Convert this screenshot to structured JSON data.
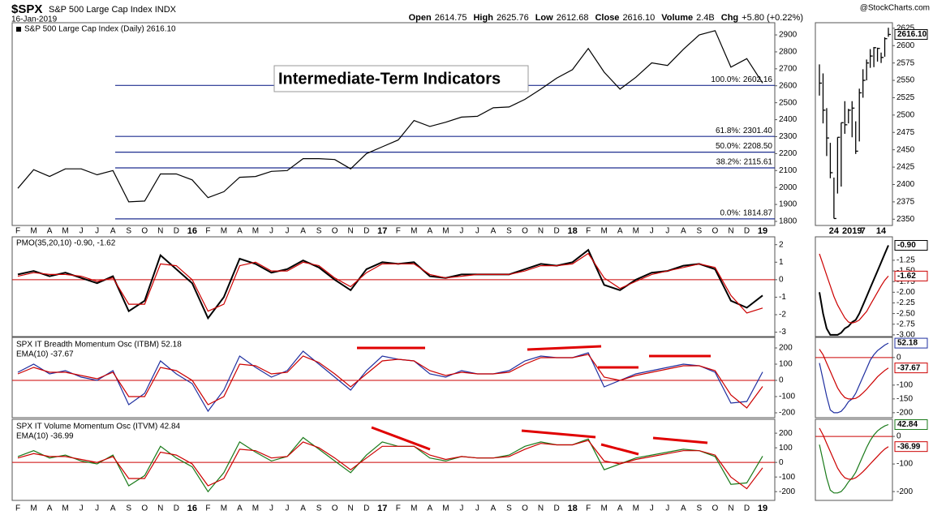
{
  "header": {
    "symbol": "$SPX",
    "name": "S&P 500 Large Cap Index",
    "exchange": "INDX",
    "date": "16-Jan-2019",
    "credit": "@StockCharts.com",
    "quote": [
      {
        "label": "Open",
        "text": "2614.75"
      },
      {
        "label": "High",
        "text": "2625.76"
      },
      {
        "label": "Low",
        "text": "2612.68"
      },
      {
        "label": "Close",
        "text": "2616.10"
      },
      {
        "label": "Volume",
        "text": "2.4B"
      },
      {
        "label": "Chg",
        "text": "+5.80 (+0.22%)"
      }
    ]
  },
  "chart_data": [
    {
      "type": "line",
      "title": "Intermediate-Term Indicators",
      "legend": "S&P 500 Large Cap Index (Daily) 2616.10",
      "categories": [
        "F",
        "M",
        "A",
        "M",
        "J",
        "J",
        "A",
        "S",
        "O",
        "N",
        "D",
        "16",
        "F",
        "M",
        "A",
        "M",
        "J",
        "J",
        "A",
        "S",
        "O",
        "N",
        "D",
        "17",
        "F",
        "M",
        "A",
        "M",
        "J",
        "J",
        "A",
        "S",
        "O",
        "N",
        "D",
        "18",
        "F",
        "M",
        "A",
        "M",
        "J",
        "J",
        "A",
        "S",
        "O",
        "N",
        "D",
        "19"
      ],
      "series": [
        {
          "color": "#000000",
          "values": [
            1995,
            2105,
            2065,
            2110,
            2110,
            2075,
            2100,
            1915,
            1920,
            2080,
            2080,
            2045,
            1940,
            1975,
            2060,
            2065,
            2095,
            2100,
            2170,
            2170,
            2165,
            2110,
            2200,
            2240,
            2280,
            2395,
            2360,
            2385,
            2415,
            2420,
            2470,
            2475,
            2520,
            2580,
            2645,
            2695,
            2820,
            2680,
            2580,
            2650,
            2735,
            2720,
            2815,
            2900,
            2925,
            2710,
            2760,
            2616.1
          ]
        }
      ],
      "ylim": [
        1776,
        2972
      ],
      "yticks": [
        1800,
        1900,
        2000,
        2100,
        2200,
        2300,
        2400,
        2500,
        2600,
        2700,
        2800,
        2900
      ],
      "fib_levels": [
        {
          "value": 2602.16,
          "label": "100.0%: 2602.16"
        },
        {
          "value": 2301.4,
          "label": "61.8%: 2301.40"
        },
        {
          "value": 2208.5,
          "label": "50.0%: 2208.50"
        },
        {
          "value": 2115.61,
          "label": "38.2%: 2115.61"
        },
        {
          "value": 1814.87,
          "label": "0.0%: 1814.87"
        }
      ]
    },
    {
      "type": "line",
      "ylim": [
        -3.25,
        2.45
      ],
      "yticks": [
        -3,
        -2,
        -1,
        0,
        1,
        2
      ],
      "reference_line": 0,
      "series": [
        {
          "name": "PMO(35,20,10) -0.90, -1.62",
          "color": "#000000",
          "values": [
            0.3,
            0.5,
            0.2,
            0.4,
            0.1,
            -0.2,
            0.2,
            -1.8,
            -1.2,
            1.4,
            0.6,
            -0.2,
            -2.2,
            -1.0,
            1.2,
            0.9,
            0.4,
            0.6,
            1.1,
            0.7,
            0.0,
            -0.6,
            0.6,
            1.0,
            0.9,
            1.0,
            0.2,
            0.1,
            0.3,
            0.3,
            0.3,
            0.3,
            0.6,
            0.9,
            0.8,
            1.0,
            1.7,
            -0.3,
            -0.6,
            0.0,
            0.4,
            0.5,
            0.8,
            0.9,
            0.6,
            -1.2,
            -1.6,
            -0.9
          ]
        },
        {
          "color": "#cc0000",
          "values": [
            0.2,
            0.4,
            0.3,
            0.3,
            0.2,
            -0.1,
            0.1,
            -1.4,
            -1.4,
            0.9,
            0.8,
            0.0,
            -1.8,
            -1.4,
            0.8,
            1.0,
            0.5,
            0.5,
            1.0,
            0.8,
            0.1,
            -0.4,
            0.4,
            0.9,
            0.9,
            0.9,
            0.3,
            0.1,
            0.2,
            0.3,
            0.3,
            0.3,
            0.5,
            0.8,
            0.8,
            0.9,
            1.5,
            0.1,
            -0.5,
            -0.1,
            0.3,
            0.5,
            0.7,
            0.9,
            0.7,
            -0.9,
            -1.9,
            -1.62
          ]
        }
      ]
    },
    {
      "type": "line",
      "ylim": [
        -230,
        265
      ],
      "yticks": [
        -200,
        -100,
        0,
        100,
        200
      ],
      "reference_line": 0,
      "series": [
        {
          "name": "SPX IT Breadth Momentum Osc (ITBM) 52.18",
          "color": "#1f2fa0",
          "values": [
            50,
            100,
            40,
            60,
            20,
            0,
            60,
            -150,
            -80,
            120,
            40,
            -20,
            -190,
            -60,
            150,
            80,
            20,
            60,
            180,
            100,
            20,
            -60,
            60,
            150,
            130,
            120,
            40,
            20,
            60,
            40,
            40,
            60,
            120,
            150,
            140,
            140,
            170,
            -40,
            0,
            40,
            60,
            80,
            100,
            90,
            50,
            -140,
            -130,
            52.18
          ]
        },
        {
          "name": "EMA(10) -37.67",
          "color": "#cc0000",
          "values": [
            40,
            80,
            50,
            50,
            30,
            10,
            50,
            -100,
            -100,
            80,
            60,
            0,
            -150,
            -100,
            100,
            90,
            40,
            50,
            150,
            110,
            40,
            -40,
            40,
            120,
            130,
            120,
            60,
            30,
            50,
            40,
            40,
            50,
            100,
            140,
            140,
            140,
            160,
            20,
            0,
            30,
            50,
            70,
            90,
            90,
            60,
            -90,
            -170,
            -37.67
          ]
        }
      ]
    },
    {
      "type": "line",
      "ylim": [
        -260,
        295
      ],
      "yticks": [
        -200,
        -100,
        0,
        100,
        200
      ],
      "reference_line": 0,
      "categories": [
        "F",
        "M",
        "A",
        "M",
        "J",
        "J",
        "A",
        "S",
        "O",
        "N",
        "D",
        "16",
        "F",
        "M",
        "A",
        "M",
        "J",
        "J",
        "A",
        "S",
        "O",
        "N",
        "D",
        "17",
        "F",
        "M",
        "A",
        "M",
        "J",
        "J",
        "A",
        "S",
        "O",
        "N",
        "D",
        "18",
        "F",
        "M",
        "A",
        "M",
        "J",
        "J",
        "A",
        "S",
        "O",
        "N",
        "D",
        "19"
      ],
      "series": [
        {
          "name": "SPX IT Volume Momentum Osc (ITVM) 42.84",
          "color": "#1a7a1a",
          "values": [
            40,
            80,
            30,
            50,
            10,
            -10,
            50,
            -160,
            -90,
            110,
            30,
            -30,
            -200,
            -70,
            140,
            70,
            10,
            40,
            170,
            90,
            10,
            -70,
            50,
            140,
            110,
            110,
            30,
            10,
            40,
            30,
            30,
            50,
            110,
            140,
            120,
            120,
            160,
            -50,
            -10,
            30,
            50,
            70,
            90,
            80,
            40,
            -150,
            -140,
            42.84
          ]
        },
        {
          "name": "EMA(10) -36.99",
          "color": "#cc0000",
          "values": [
            30,
            60,
            40,
            40,
            20,
            0,
            40,
            -110,
            -110,
            70,
            50,
            -10,
            -160,
            -110,
            90,
            80,
            30,
            40,
            140,
            100,
            30,
            -50,
            30,
            110,
            110,
            110,
            50,
            20,
            40,
            30,
            30,
            40,
            90,
            130,
            120,
            120,
            150,
            10,
            -10,
            20,
            40,
            60,
            80,
            80,
            50,
            -100,
            -180,
            -36.99
          ]
        }
      ]
    },
    {
      "type": "ohlc",
      "categories": [
        null,
        null,
        null,
        null,
        "24",
        null,
        null,
        null,
        null,
        "2019",
        null,
        null,
        "7",
        null,
        null,
        null,
        null,
        "14",
        null,
        null
      ],
      "high": [
        2573,
        2560,
        2510,
        2460,
        2410,
        2468,
        2489,
        2520,
        2509,
        2520,
        2491,
        2538,
        2566,
        2580,
        2595,
        2598,
        2597,
        2590,
        2612,
        2625.76
      ],
      "low": [
        2528,
        2488,
        2441,
        2409,
        2351,
        2387,
        2397,
        2473,
        2488,
        2468,
        2444,
        2462,
        2525,
        2550,
        2568,
        2569,
        2577,
        2575,
        2584,
        2612.68
      ],
      "close": [
        2546,
        2507,
        2467,
        2417,
        2351,
        2468,
        2489,
        2486,
        2507,
        2510,
        2448,
        2532,
        2550,
        2575,
        2585,
        2597,
        2596,
        2583,
        2610,
        2616.1
      ],
      "color": "#000000",
      "ylim": [
        2341,
        2633
      ],
      "yticks": [
        2350,
        2375,
        2400,
        2425,
        2450,
        2475,
        2500,
        2525,
        2550,
        2575,
        2600,
        2625
      ],
      "markers": [
        {
          "value": 2616.1,
          "label": "2616.10",
          "color": "#000000"
        }
      ]
    },
    {
      "type": "line",
      "ylim": [
        -3.04,
        -0.7
      ],
      "yticks": [
        -1.25,
        {
          "value": -1.5,
          "label": "-1.50"
        },
        -1.75,
        {
          "value": -2,
          "label": "-2.00"
        },
        -2.25,
        {
          "value": -2.5,
          "label": "-2.50"
        },
        -2.75,
        {
          "value": -3,
          "label": "-3.00"
        }
      ],
      "series": [
        {
          "color": "#000000",
          "values": [
            -2.0,
            -2.5,
            -2.85,
            -3.0,
            -3.0,
            -3.0,
            -2.95,
            -2.85,
            -2.8,
            -2.7,
            -2.65,
            -2.5,
            -2.3,
            -2.1,
            -1.9,
            -1.7,
            -1.5,
            -1.3,
            -1.1,
            -0.9
          ]
        },
        {
          "color": "#cc0000",
          "values": [
            -1.1,
            -1.35,
            -1.6,
            -1.85,
            -2.1,
            -2.3,
            -2.45,
            -2.6,
            -2.7,
            -2.72,
            -2.7,
            -2.65,
            -2.55,
            -2.45,
            -2.3,
            -2.15,
            -2.0,
            -1.85,
            -1.72,
            -1.62
          ]
        }
      ],
      "markers": [
        {
          "value": -0.9,
          "label": "-0.90",
          "color": "#000000"
        },
        {
          "value": -1.62,
          "label": "-1.62",
          "color": "#cc0000"
        }
      ]
    },
    {
      "type": "line",
      "ylim": [
        -218,
        73
      ],
      "yticks": [
        -200,
        -150,
        -100,
        0
      ],
      "reference_line": 0,
      "series": [
        {
          "color": "#1f2fa0",
          "values": [
            -20,
            -80,
            -140,
            -190,
            -200,
            -200,
            -195,
            -180,
            -160,
            -150,
            -130,
            -100,
            -70,
            -40,
            -10,
            10,
            25,
            35,
            45,
            52.18
          ]
        },
        {
          "color": "#cc0000",
          "values": [
            30,
            10,
            -20,
            -50,
            -80,
            -110,
            -130,
            -145,
            -150,
            -150,
            -148,
            -140,
            -128,
            -115,
            -100,
            -85,
            -70,
            -58,
            -47,
            -37.67
          ]
        }
      ],
      "markers": [
        {
          "value": 52.18,
          "label": "52.18",
          "color": "#1f2fa0"
        },
        {
          "value": -37.67,
          "label": "-37.67",
          "color": "#cc0000"
        }
      ]
    },
    {
      "type": "line",
      "ylim": [
        -232,
        62
      ],
      "yticks": [
        -200,
        -100,
        0
      ],
      "reference_line": 0,
      "series": [
        {
          "color": "#1a7a1a",
          "values": [
            -30,
            -90,
            -150,
            -195,
            -205,
            -205,
            -200,
            -185,
            -165,
            -150,
            -130,
            -100,
            -70,
            -40,
            -15,
            5,
            20,
            30,
            38,
            42.84
          ]
        },
        {
          "color": "#cc0000",
          "values": [
            30,
            5,
            -25,
            -55,
            -85,
            -115,
            -135,
            -150,
            -155,
            -155,
            -150,
            -140,
            -128,
            -114,
            -100,
            -86,
            -72,
            -58,
            -46,
            -36.99
          ]
        }
      ],
      "markers": [
        {
          "value": 42.84,
          "label": "42.84",
          "color": "#1a7a1a"
        },
        {
          "value": -36.99,
          "label": "-36.99",
          "color": "#cc0000"
        }
      ]
    }
  ]
}
